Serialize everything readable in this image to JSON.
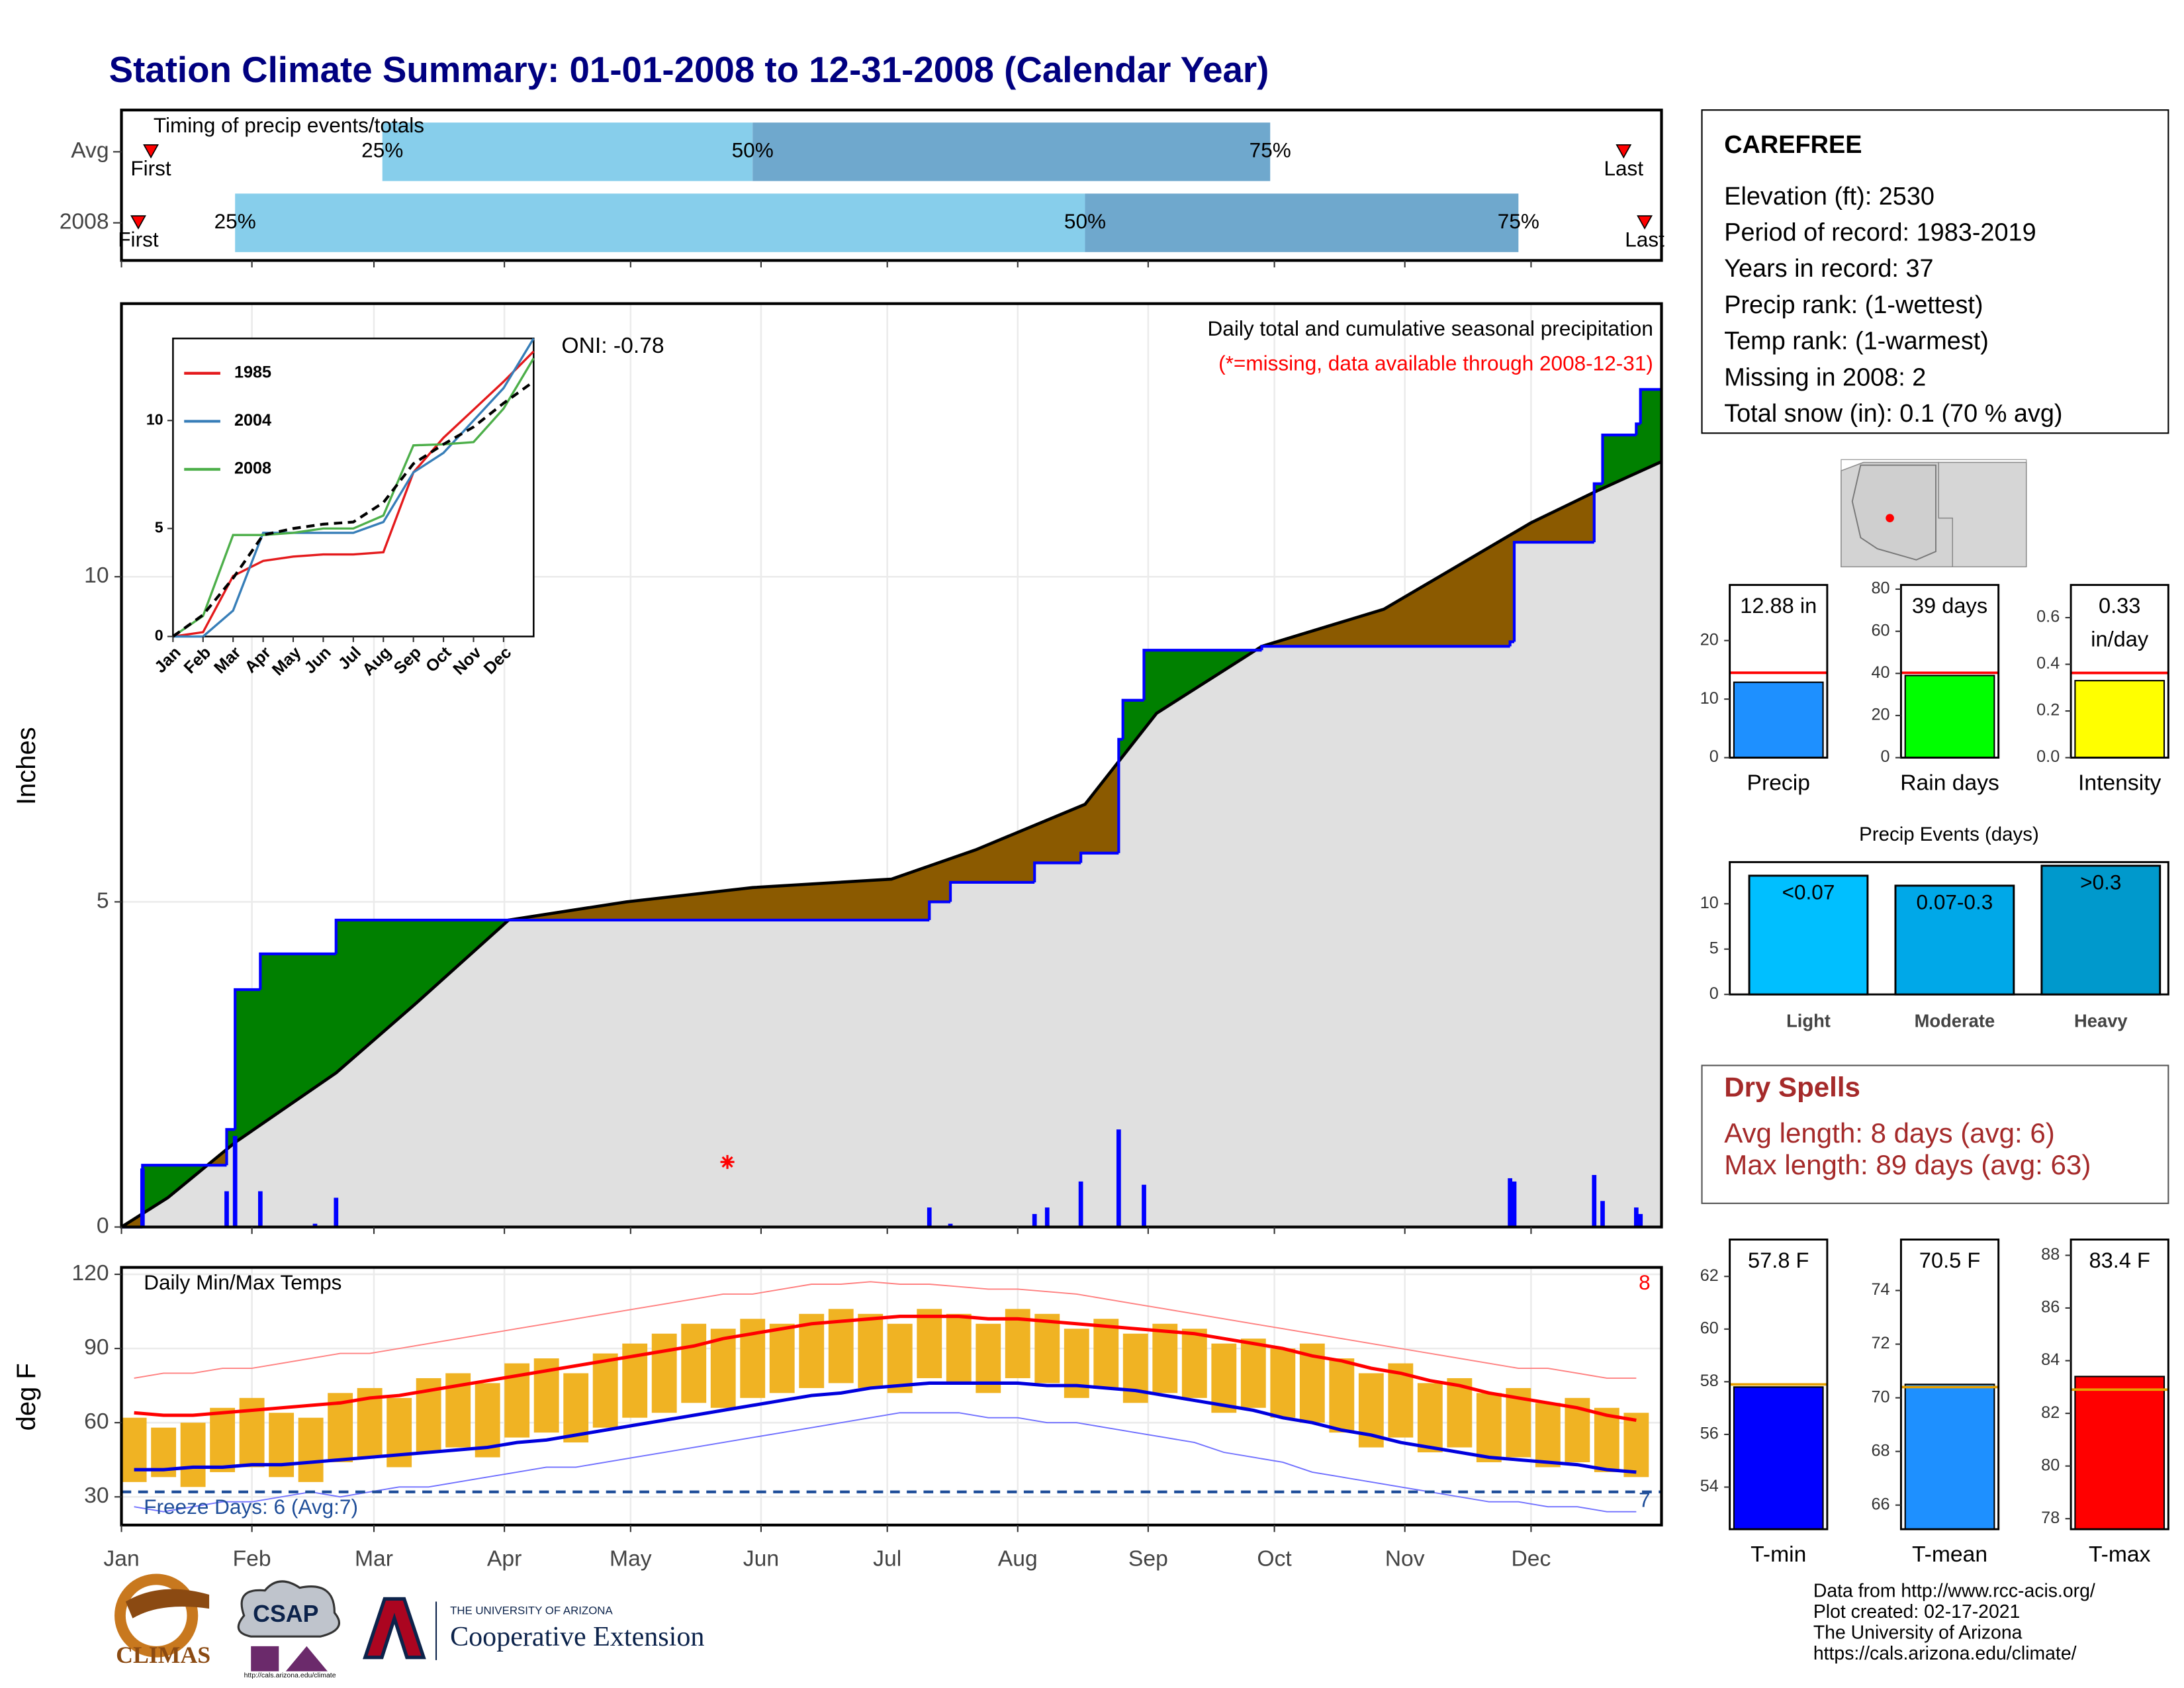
{
  "title": "Station Climate Summary: 01-01-2008 to 12-31-2008 (Calendar Year)",
  "info": {
    "name": "CAREFREE",
    "lines": [
      "Elevation (ft): 2530",
      "Period of record: 1983-2019",
      "Years in record: 37",
      "Precip rank:  (1-wettest)",
      "Temp rank:  (1-warmest)",
      "Missing in 2008: 2",
      "Total snow (in): 0.1 (70 % avg)"
    ]
  },
  "dry_spells": {
    "title": "Dry Spells",
    "lines": [
      "Avg length: 8 days (avg: 6)",
      "Max length: 89 days (avg: 63)"
    ]
  },
  "footer": {
    "logos": [
      "CLIMAS",
      "CSAP"
    ],
    "csap_url": "http://cals.arizona.edu/climate",
    "university": "THE UNIVERSITY OF ARIZONA",
    "extension": "Cooperative Extension",
    "credits": [
      "Data from http://www.rcc-acis.org/",
      "Plot created: 02-17-2021",
      "The University of Arizona",
      "https://cals.arizona.edu/climate/"
    ]
  },
  "chart_data": [
    {
      "type": "timing",
      "title": "Timing of precip events/totals",
      "xlim": [
        0,
        366
      ],
      "light_color": "#87ceeb",
      "dark_color": "#6fa8cd",
      "marker_color": "#ff0000",
      "rows": [
        {
          "label": "Avg",
          "first": 7,
          "q25": 62,
          "q50": 150,
          "q75": 273,
          "last": 357,
          "first_label": "First",
          "last_label": "Last",
          "q_labels": [
            "25%",
            "50%",
            "75%"
          ]
        },
        {
          "label": "2008",
          "first": 4,
          "q25": 27,
          "q50": 229,
          "q75": 332,
          "last": 362,
          "first_label": "First",
          "last_label": "Last",
          "q_labels": [
            "25%",
            "50%",
            "75%"
          ]
        }
      ]
    },
    {
      "type": "step_area",
      "title": "Daily total and cumulative seasonal precipitation",
      "note": "(*=missing, data available through 2008-12-31)",
      "annotation": "ONI: -0.78",
      "ylabel": "Inches",
      "xlim": [
        0,
        366
      ],
      "ylim": [
        0,
        14.2
      ],
      "yticks": [
        0,
        5,
        10
      ],
      "grid": true,
      "above_color": "#008000",
      "below_color": "#8b5a00",
      "base_color": "#e0e0e0",
      "cumulative": {
        "color": "#0000ff",
        "x": [
          0,
          5,
          25,
          27,
          33,
          51,
          192,
          197,
          217,
          228,
          237,
          238,
          243,
          271,
          330,
          331,
          350,
          352,
          360,
          361
        ],
        "values": [
          0,
          0.95,
          1.5,
          3.65,
          4.2,
          4.72,
          5.0,
          5.3,
          5.6,
          5.75,
          7.5,
          8.1,
          8.87,
          8.93,
          9.0,
          10.53,
          11.43,
          12.18,
          12.35,
          12.88
        ]
      },
      "average": {
        "color": "#000000",
        "x": [
          0,
          11,
          27,
          51,
          70,
          92,
          120,
          150,
          183,
          203,
          229,
          246,
          271,
          300,
          335,
          350,
          366
        ],
        "values": [
          0,
          0.45,
          1.3,
          2.37,
          3.44,
          4.72,
          5.0,
          5.22,
          5.35,
          5.8,
          6.5,
          7.9,
          8.93,
          9.5,
          10.83,
          11.3,
          11.77
        ]
      },
      "daily": {
        "color": "#0000ff",
        "x": [
          5,
          25,
          27,
          33,
          46,
          51,
          192,
          197,
          217,
          220,
          228,
          237,
          243,
          330,
          331,
          350,
          352,
          360,
          361
        ],
        "values": [
          0.9,
          0.55,
          1.4,
          0.55,
          0.05,
          0.45,
          0.3,
          0.05,
          0.2,
          0.3,
          0.7,
          1.5,
          0.65,
          0.75,
          0.7,
          0.8,
          0.4,
          0.3,
          0.2
        ]
      },
      "missing": {
        "color": "#ff0000",
        "x": [
          144
        ],
        "values": [
          1.0
        ]
      }
    },
    {
      "type": "line",
      "xlim": [
        0,
        12
      ],
      "ylim": [
        0,
        13.8
      ],
      "yticks": [
        0,
        5,
        10
      ],
      "xticks": [
        {
          "value": 0,
          "label": "Jan"
        },
        {
          "value": 1,
          "label": "Feb"
        },
        {
          "value": 2,
          "label": "Mar"
        },
        {
          "value": 3,
          "label": "Apr"
        },
        {
          "value": 4,
          "label": "May"
        },
        {
          "value": 5,
          "label": "Jun"
        },
        {
          "value": 6,
          "label": "Jul"
        },
        {
          "value": 7,
          "label": "Aug"
        },
        {
          "value": 8,
          "label": "Sep"
        },
        {
          "value": 9,
          "label": "Oct"
        },
        {
          "value": 10,
          "label": "Nov"
        },
        {
          "value": 11,
          "label": "Dec"
        }
      ],
      "x": [
        0,
        1,
        2,
        3,
        4,
        5,
        6,
        7,
        8,
        9,
        10,
        11,
        12
      ],
      "series": [
        {
          "name": "1985",
          "color": "#e41a1c",
          "values": [
            0,
            0.2,
            2.8,
            3.5,
            3.7,
            3.8,
            3.8,
            3.9,
            7.6,
            9.2,
            10.5,
            11.8,
            13.2
          ]
        },
        {
          "name": "2004",
          "color": "#377eb8",
          "values": [
            0,
            0,
            1.2,
            4.8,
            4.8,
            4.8,
            4.8,
            5.3,
            7.6,
            8.5,
            10,
            11.5,
            13.8
          ]
        },
        {
          "name": "2008",
          "color": "#4daf4a",
          "values": [
            0,
            0.95,
            4.7,
            4.7,
            4.8,
            5.0,
            5.0,
            5.6,
            8.85,
            8.9,
            9.0,
            10.55,
            12.88
          ]
        }
      ],
      "average": {
        "color": "#000000",
        "dashed": true,
        "values": [
          0,
          1.0,
          2.7,
          4.7,
          5.0,
          5.2,
          5.3,
          6.2,
          8.0,
          8.9,
          9.7,
          10.8,
          11.8
        ]
      }
    },
    {
      "type": "range_bar",
      "title": "Daily Min/Max Temps",
      "ylabel": "deg F",
      "xlim": [
        0,
        366
      ],
      "ylim": [
        18.6,
        122.8
      ],
      "yticks": [
        30,
        60,
        90,
        120
      ],
      "grid": true,
      "xticks": [
        {
          "value": 0,
          "label": "Jan"
        },
        {
          "value": 31,
          "label": "Feb"
        },
        {
          "value": 60,
          "label": "Mar"
        },
        {
          "value": 91,
          "label": "Apr"
        },
        {
          "value": 121,
          "label": "May"
        },
        {
          "value": 152,
          "label": "Jun"
        },
        {
          "value": 182,
          "label": "Jul"
        },
        {
          "value": 213,
          "label": "Aug"
        },
        {
          "value": 244,
          "label": "Sep"
        },
        {
          "value": 274,
          "label": "Oct"
        },
        {
          "value": 305,
          "label": "Nov"
        },
        {
          "value": 335,
          "label": "Dec"
        }
      ],
      "bar_color": "#f0b323",
      "normal_max_color": "#ff0000",
      "normal_min_color": "#0000dd",
      "record_max_color": "#ff8080",
      "record_min_color": "#7070ff",
      "freeze_color": "#1f4e99",
      "x": [
        3,
        10,
        17,
        24,
        31,
        38,
        45,
        52,
        59,
        66,
        73,
        80,
        87,
        94,
        101,
        108,
        115,
        122,
        129,
        136,
        143,
        150,
        157,
        164,
        171,
        178,
        185,
        192,
        199,
        206,
        213,
        220,
        227,
        234,
        241,
        248,
        255,
        262,
        269,
        276,
        283,
        290,
        297,
        304,
        311,
        318,
        325,
        332,
        339,
        346,
        353,
        360
      ],
      "max": [
        62,
        58,
        60,
        66,
        70,
        64,
        62,
        72,
        74,
        70,
        78,
        80,
        76,
        84,
        86,
        80,
        88,
        92,
        96,
        100,
        98,
        102,
        100,
        104,
        106,
        104,
        100,
        106,
        104,
        100,
        106,
        104,
        98,
        102,
        96,
        100,
        98,
        92,
        94,
        90,
        92,
        86,
        80,
        84,
        76,
        78,
        72,
        74,
        68,
        70,
        66,
        64
      ],
      "min": [
        36,
        38,
        34,
        40,
        42,
        38,
        36,
        44,
        46,
        42,
        48,
        50,
        46,
        54,
        56,
        52,
        58,
        62,
        64,
        68,
        66,
        70,
        72,
        74,
        76,
        74,
        72,
        78,
        76,
        72,
        78,
        76,
        70,
        74,
        68,
        72,
        70,
        64,
        66,
        62,
        60,
        56,
        50,
        54,
        48,
        50,
        44,
        46,
        42,
        44,
        40,
        38
      ],
      "normal_max": [
        64,
        63,
        63,
        64,
        65,
        66,
        67,
        68,
        70,
        71,
        73,
        75,
        77,
        79,
        81,
        83,
        85,
        87,
        89,
        91,
        94,
        96,
        98,
        100,
        101,
        102,
        103,
        103,
        103,
        102,
        102,
        101,
        100,
        99,
        98,
        97,
        96,
        94,
        92,
        90,
        87,
        85,
        82,
        80,
        77,
        75,
        72,
        70,
        68,
        66,
        63,
        61
      ],
      "normal_min": [
        41,
        41,
        42,
        42,
        43,
        43,
        44,
        45,
        46,
        47,
        48,
        49,
        50,
        52,
        53,
        55,
        57,
        59,
        61,
        63,
        65,
        67,
        69,
        71,
        72,
        74,
        75,
        76,
        76,
        76,
        76,
        75,
        75,
        74,
        73,
        71,
        69,
        67,
        65,
        62,
        60,
        57,
        55,
        52,
        50,
        48,
        46,
        45,
        44,
        43,
        41,
        40
      ],
      "record_max": [
        78,
        80,
        80,
        82,
        82,
        84,
        86,
        88,
        88,
        90,
        92,
        94,
        96,
        98,
        100,
        102,
        104,
        106,
        108,
        110,
        112,
        112,
        114,
        116,
        116,
        117,
        116,
        116,
        115,
        114,
        114,
        113,
        112,
        110,
        108,
        106,
        104,
        102,
        100,
        98,
        96,
        94,
        92,
        90,
        88,
        86,
        84,
        82,
        82,
        80,
        78,
        78
      ],
      "record_min": [
        26,
        24,
        26,
        28,
        28,
        30,
        32,
        30,
        32,
        34,
        34,
        36,
        38,
        40,
        42,
        42,
        44,
        46,
        48,
        50,
        52,
        54,
        56,
        58,
        60,
        62,
        64,
        64,
        64,
        62,
        62,
        60,
        60,
        58,
        56,
        54,
        52,
        48,
        46,
        44,
        40,
        38,
        36,
        34,
        32,
        30,
        28,
        28,
        26,
        26,
        24,
        24
      ],
      "freeze": 32,
      "freeze_label": "Freeze Days: 6 (Avg:7)",
      "top_right_label": 8,
      "bottom_right_label": 7
    },
    {
      "type": "bar",
      "category": "Precip",
      "value": 12.88,
      "value_label_lines": [
        "12.88 in"
      ],
      "normal": 14.5,
      "color": "#1e90ff",
      "normal_color": "#ff0000",
      "ylim": [
        0,
        29.5
      ],
      "yticks": [
        0,
        10,
        20
      ]
    },
    {
      "type": "bar",
      "category": "Rain days",
      "value": 39,
      "value_label_lines": [
        "39 days"
      ],
      "normal": 40.3,
      "color": "#00ff00",
      "normal_color": "#ff0000",
      "ylim": [
        0,
        82
      ],
      "yticks": [
        0,
        20,
        40,
        60,
        80
      ]
    },
    {
      "type": "bar",
      "category": "Intensity",
      "value": 0.33,
      "value_label_lines": [
        "0.33",
        "in/day"
      ],
      "normal": 0.363,
      "color": "#ffff00",
      "normal_color": "#ff0000",
      "ylim": [
        0,
        0.74
      ],
      "yticks": [
        {
          "value": 0,
          "label": "0.0"
        },
        0.2,
        0.4,
        0.6
      ]
    },
    {
      "type": "multi_bar",
      "title": "Precip Events (days)",
      "categories": [
        "Light",
        "Moderate",
        "Heavy"
      ],
      "values": [
        13.1,
        12,
        14.2
      ],
      "bin_labels": [
        "<0.07",
        "0.07-0.3",
        ">0.3"
      ],
      "colors": [
        "#00bfff",
        "#00a8e8",
        "#0099cc"
      ],
      "ylim": [
        0,
        14.6
      ],
      "yticks": [
        0,
        5,
        10
      ]
    },
    {
      "type": "bar",
      "category": "T-min",
      "value": 57.8,
      "value_label_lines": [
        "57.8 F"
      ],
      "normal": 57.9,
      "color": "#0000ff",
      "normal_color": "#e69f00",
      "ylim": [
        52.4,
        63.4
      ],
      "yticks": [
        54,
        56,
        58,
        60,
        62
      ]
    },
    {
      "type": "bar",
      "category": "T-mean",
      "value": 70.5,
      "value_label_lines": [
        "70.5 F"
      ],
      "normal": 70.4,
      "color": "#1e90ff",
      "normal_color": "#e69f00",
      "ylim": [
        65.1,
        75.9
      ],
      "yticks": [
        66,
        68,
        70,
        72,
        74
      ]
    },
    {
      "type": "bar",
      "category": "T-max",
      "value": 83.4,
      "value_label_lines": [
        "83.4 F"
      ],
      "normal": 82.9,
      "color": "#ff0000",
      "normal_color": "#e69f00",
      "ylim": [
        77.6,
        88.6
      ],
      "yticks": [
        78,
        80,
        82,
        84,
        86,
        88
      ]
    }
  ]
}
